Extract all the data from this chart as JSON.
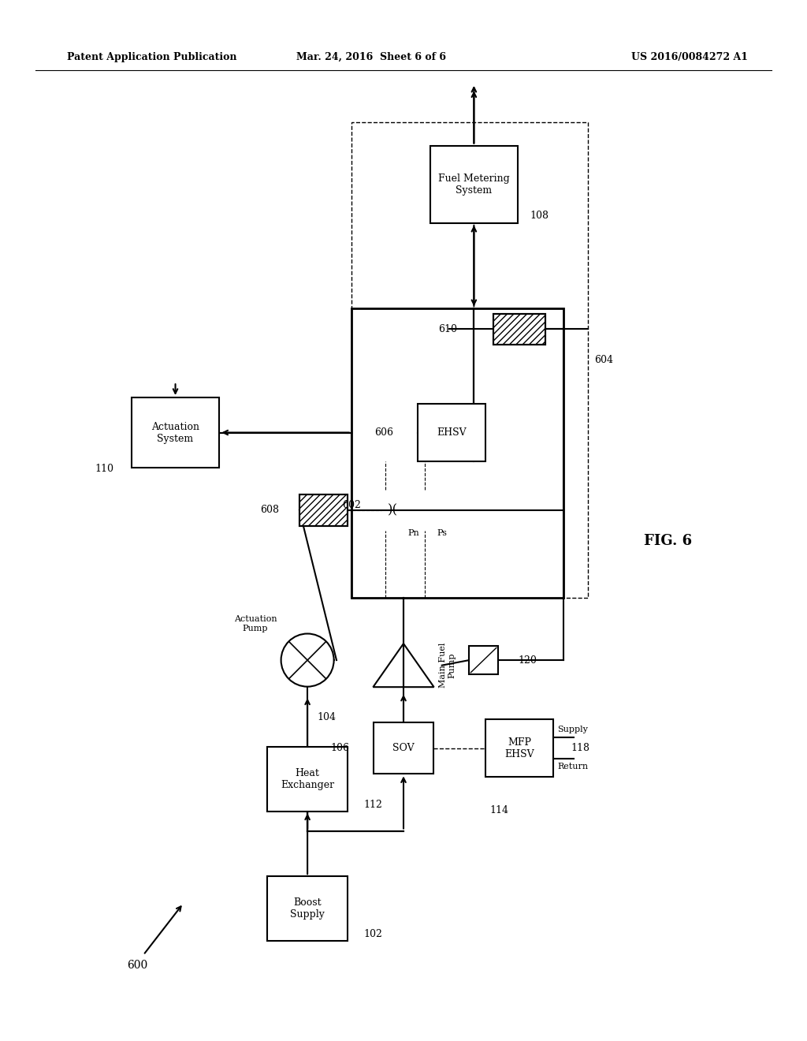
{
  "bg_color": "#ffffff",
  "header_left": "Patent Application Publication",
  "header_mid": "Mar. 24, 2016  Sheet 6 of 6",
  "header_right": "US 2016/0084272 A1"
}
